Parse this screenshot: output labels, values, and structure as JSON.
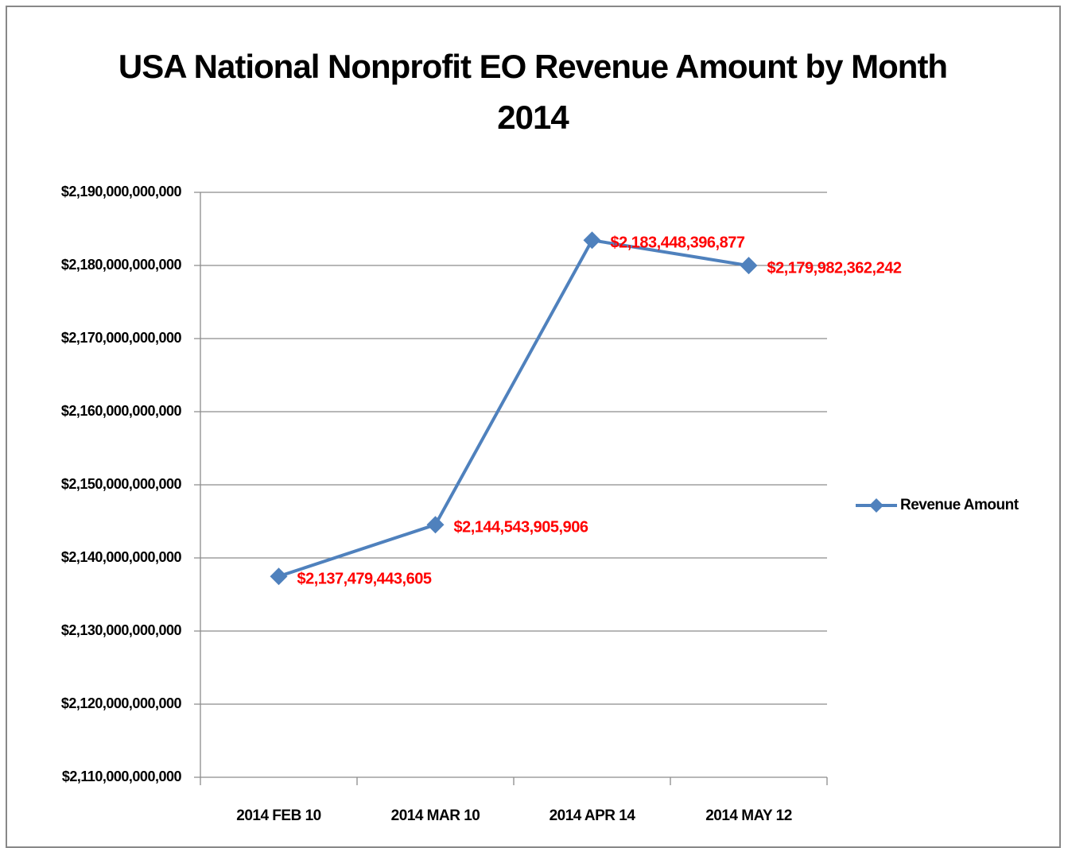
{
  "chart_data": {
    "type": "line",
    "title": "USA National Nonprofit EO Revenue Amount by Month 2014",
    "categories": [
      "2014 FEB 10",
      "2014 MAR 10",
      "2014 APR 14",
      "2014 MAY 12"
    ],
    "series": [
      {
        "name": "Revenue Amount",
        "color": "#4f81bd",
        "values": [
          2137479443605,
          2144543905906,
          2183448396877,
          2179982362242
        ],
        "value_labels": [
          "$2,137,479,443,605",
          "$2,144,543,905,906",
          "$2,183,448,396,877",
          "$2,179,982,362,242"
        ]
      }
    ],
    "ylim": [
      2110000000000,
      2190000000000
    ],
    "yticks": [
      {
        "value": 2110000000000,
        "label": "$2,110,000,000,000"
      },
      {
        "value": 2120000000000,
        "label": "$2,120,000,000,000"
      },
      {
        "value": 2130000000000,
        "label": "$2,130,000,000,000"
      },
      {
        "value": 2140000000000,
        "label": "$2,140,000,000,000"
      },
      {
        "value": 2150000000000,
        "label": "$2,150,000,000,000"
      },
      {
        "value": 2160000000000,
        "label": "$2,160,000,000,000"
      },
      {
        "value": 2170000000000,
        "label": "$2,170,000,000,000"
      },
      {
        "value": 2180000000000,
        "label": "$2,180,000,000,000"
      },
      {
        "value": 2190000000000,
        "label": "$2,190,000,000,000"
      }
    ],
    "grid": true,
    "legend": "right",
    "value_label_color": "#ff0000"
  }
}
